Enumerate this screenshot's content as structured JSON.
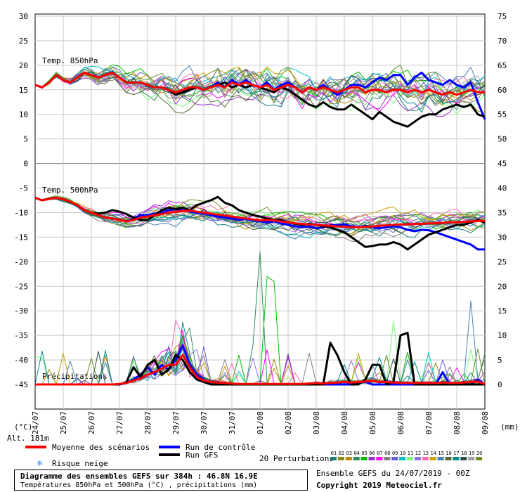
{
  "chart_data": {
    "type": "line",
    "title": "Diagramme des ensembles GEFS sur 384h : 46.8N 16.9E",
    "subtitle": "Températures 850hPa et 500hPa (°C) , précipitations (mm)",
    "run_info": "Ensemble GEFS du 24/07/2019 - 00Z",
    "copyright": "Copyright 2019 Meteociel.fr",
    "altitude": "Alt. 181m",
    "left_unit": "(°C)",
    "right_unit": "(mm)",
    "panel_labels": [
      "Temp. 850hPa",
      "Temp. 500hPa",
      "Précipitations"
    ],
    "left_ticks": [
      "30",
      "25",
      "20",
      "15",
      "10",
      "5",
      "0",
      "-5",
      "-10",
      "-15",
      "-20",
      "-25",
      "-30",
      "-35",
      "-40",
      "-45"
    ],
    "right_ticks": [
      "75",
      "70",
      "65",
      "60",
      "55",
      "50",
      "45",
      "40",
      "35",
      "30",
      "25",
      "20",
      "15",
      "10",
      "5",
      "0"
    ],
    "x_ticks": [
      "24/07",
      "25/07",
      "26/07",
      "27/07",
      "28/07",
      "29/07",
      "30/07",
      "31/07",
      "01/08",
      "02/08",
      "03/08",
      "04/08",
      "05/08",
      "06/08",
      "07/08",
      "08/08",
      "09/08"
    ],
    "legend": {
      "mean": "Moyenne des scénarios",
      "control": "Run de contrôle",
      "gfs": "Run GFS",
      "snow": "Risque neige",
      "perturbations": "20 Perturbations",
      "pert_numbers": [
        "01",
        "02",
        "03",
        "04",
        "05",
        "06",
        "07",
        "08",
        "09",
        "10",
        "11",
        "12",
        "13",
        "14",
        "15",
        "16",
        "17",
        "18",
        "19",
        "20"
      ]
    },
    "colors": {
      "mean": "#ff0000",
      "control": "#0000ff",
      "gfs": "#000000",
      "members": [
        "#1e7a7a",
        "#8b8b00",
        "#b8860b",
        "#2e8b57",
        "#00c000",
        "#9932cc",
        "#ff00ff",
        "#808080",
        "#6a5acd",
        "#00bfbf",
        "#7cfc7c",
        "#9370db",
        "#ff69b4",
        "#c8a000",
        "#4682b4",
        "#556b2f",
        "#008b8b",
        "#2f4f4f",
        "#a0a0a0",
        "#6b8e23"
      ]
    },
    "x": [
      0,
      6,
      12,
      18,
      24,
      30,
      36,
      42,
      48,
      54,
      60,
      66,
      72,
      78,
      84,
      90,
      96,
      102,
      108,
      114,
      120,
      126,
      132,
      138,
      144,
      150,
      156,
      162,
      168,
      174,
      180,
      186,
      192,
      198,
      204,
      210,
      216,
      222,
      228,
      234,
      240,
      246,
      252,
      258,
      264,
      270,
      276,
      282,
      288,
      294,
      300,
      306,
      312,
      318,
      324,
      330,
      336,
      342,
      348,
      354,
      360,
      366,
      372,
      378,
      384
    ],
    "t850": {
      "mean": [
        16,
        15.5,
        16.5,
        18,
        17,
        16.5,
        17.5,
        18.5,
        18,
        17.5,
        18,
        18.5,
        17.5,
        16.5,
        16.5,
        16.5,
        16,
        15.5,
        15.5,
        15,
        14.5,
        15,
        15.5,
        15.5,
        15,
        15.5,
        16,
        15.5,
        16.5,
        16,
        16.5,
        16,
        15.5,
        16,
        15,
        15.5,
        16,
        15.5,
        14.5,
        15.5,
        15,
        15.5,
        15,
        14.5,
        15,
        15.5,
        15.5,
        14.5,
        15,
        15,
        14.5,
        15,
        15,
        14.5,
        15,
        14.5,
        15,
        14.5,
        14,
        14.5,
        14,
        14.5,
        15,
        14.5,
        14.5
      ],
      "control": [
        16,
        15.5,
        16.5,
        18,
        17,
        16.5,
        17.5,
        18.5,
        18,
        17.5,
        18,
        18.5,
        17.5,
        16.5,
        16.5,
        16.5,
        16,
        15.5,
        15.5,
        15,
        14,
        14.5,
        15,
        15.5,
        15,
        15.5,
        16.5,
        15.5,
        17,
        16,
        17,
        16,
        15.5,
        16.5,
        15,
        16,
        16.5,
        15.5,
        14.5,
        15.5,
        15,
        16,
        15,
        14,
        15,
        16,
        16,
        15.5,
        16.5,
        17.5,
        17,
        18,
        18,
        16,
        17.5,
        18.5,
        17,
        16.5,
        16,
        17,
        16,
        15.5,
        16.5,
        12.5,
        9
      ],
      "gfs": [
        16,
        15.5,
        16.5,
        18,
        17,
        16.5,
        17.5,
        18.5,
        18,
        17.5,
        18,
        18.5,
        17.5,
        16.5,
        16.5,
        16.5,
        16,
        15.5,
        15.5,
        15,
        14,
        14.5,
        15,
        15.5,
        15,
        15.5,
        16,
        16.5,
        15.5,
        16,
        15.5,
        16,
        15.5,
        15,
        14.5,
        15.5,
        15,
        14,
        13,
        12,
        11.5,
        12.5,
        11.5,
        11,
        11,
        12,
        11,
        10,
        9,
        10.5,
        9.5,
        8.5,
        8,
        7.5,
        8.5,
        9.5,
        10,
        10,
        11,
        11.5,
        12,
        11.5,
        12,
        10,
        9.5
      ]
    },
    "t500": {
      "mean": [
        -7,
        -7.5,
        -7.2,
        -7,
        -7.3,
        -7.8,
        -8.5,
        -9.5,
        -10,
        -10.5,
        -11,
        -11.2,
        -11.5,
        -11.8,
        -11.5,
        -11,
        -10.8,
        -10.5,
        -10.3,
        -10,
        -9.8,
        -9.7,
        -9.6,
        -9.8,
        -10,
        -10.2,
        -10.4,
        -10.6,
        -10.8,
        -11,
        -11.2,
        -11.4,
        -11.6,
        -11.5,
        -11.6,
        -11.8,
        -12,
        -12.2,
        -12.3,
        -12.4,
        -12.5,
        -12.6,
        -12.7,
        -12.8,
        -12.9,
        -13,
        -13,
        -12.9,
        -12.8,
        -12.7,
        -12.6,
        -12.5,
        -12.4,
        -12.4,
        -12.3,
        -12.3,
        -12.2,
        -12.2,
        -12.1,
        -12,
        -12,
        -11.9,
        -11.8,
        -11.7,
        -11.7
      ],
      "control": [
        -7,
        -7.5,
        -7.2,
        -7,
        -7.3,
        -7.8,
        -8.5,
        -9.5,
        -10,
        -10.5,
        -11,
        -11.2,
        -11.5,
        -11.8,
        -11.3,
        -10.5,
        -10.5,
        -10.2,
        -10,
        -9.5,
        -9.3,
        -9.5,
        -9.8,
        -10,
        -10.2,
        -10.5,
        -10.8,
        -11,
        -11.2,
        -11.5,
        -11.3,
        -11.6,
        -11.8,
        -12,
        -11.8,
        -12.2,
        -12.5,
        -12.8,
        -13,
        -12.8,
        -13.2,
        -13,
        -12.6,
        -12.5,
        -12.4,
        -12.8,
        -13,
        -12.7,
        -13,
        -13.2,
        -13,
        -12.8,
        -13,
        -13.5,
        -13.8,
        -13.5,
        -13.6,
        -14,
        -14.5,
        -15,
        -15.5,
        -16,
        -16.5,
        -17.5,
        -17.5
      ],
      "gfs": [
        -7,
        -7.5,
        -7.2,
        -7,
        -7.3,
        -7.8,
        -8.5,
        -9.5,
        -10,
        -10.2,
        -10,
        -9.5,
        -9.8,
        -10.3,
        -11,
        -11.5,
        -11.5,
        -10.5,
        -9.5,
        -9,
        -9.3,
        -9,
        -9.5,
        -8.5,
        -8,
        -7.5,
        -6.8,
        -8,
        -8.5,
        -9.5,
        -10,
        -10.5,
        -10.8,
        -11.2,
        -11.5,
        -11.5,
        -12,
        -12.3,
        -12.5,
        -12.3,
        -12.5,
        -12.8,
        -13,
        -13.5,
        -14,
        -15,
        -16,
        -17,
        -16.8,
        -16.5,
        -16.5,
        -16,
        -16.5,
        -17.5,
        -16.5,
        -15.5,
        -14.5,
        -14,
        -13.5,
        -13,
        -12.5,
        -12.5,
        -12,
        -11.5,
        -12
      ]
    },
    "precip": {
      "mean": [
        0,
        0,
        0,
        0,
        0,
        0,
        0,
        0,
        0,
        0,
        0,
        0,
        0.1,
        0.3,
        0.8,
        1.2,
        2,
        2.5,
        3.2,
        4,
        4,
        6,
        3.5,
        1.5,
        0.8,
        0.5,
        0.4,
        0.3,
        0.2,
        0.1,
        0.1,
        0.1,
        0.1,
        0.1,
        0.1,
        0.1,
        0.1,
        0.1,
        0.1,
        0.2,
        0.3,
        0.2,
        0.3,
        0.4,
        0.5,
        0.4,
        0.5,
        0.6,
        0.7,
        0.5,
        0.5,
        0.4,
        0.3,
        0.3,
        0.3,
        0.3,
        0.3,
        0.3,
        0.4,
        0.3,
        0.3,
        0.4,
        0.5,
        0.6,
        0.1
      ],
      "control": [
        0,
        0,
        0,
        0,
        0,
        0,
        0,
        0,
        0,
        0,
        0,
        0,
        0,
        0.3,
        1,
        2,
        3.5,
        2,
        4,
        3,
        5,
        8,
        4,
        2,
        1,
        0,
        0,
        0,
        0,
        0,
        0,
        0,
        0,
        0,
        0,
        0,
        0,
        0,
        0,
        0,
        0,
        0,
        0,
        0,
        0,
        0,
        0.5,
        0.5,
        0,
        0,
        0,
        0,
        0,
        0,
        0,
        0,
        0,
        0,
        2.5,
        0,
        0,
        0,
        0,
        1,
        0
      ],
      "gfs": [
        0,
        0,
        0,
        0,
        0,
        0,
        0,
        0,
        0,
        0,
        0,
        0,
        0,
        0.5,
        3.5,
        1.5,
        4,
        5,
        2,
        3,
        6,
        5,
        2.5,
        1,
        0.5,
        0,
        0,
        0,
        0,
        0,
        0,
        0,
        0,
        0,
        0,
        0,
        0,
        0,
        0,
        0,
        0,
        0,
        8.5,
        6,
        2.5,
        0,
        0,
        1,
        4,
        4,
        0,
        0.5,
        10,
        10.5,
        0,
        0,
        0,
        0,
        0,
        0,
        0,
        0,
        0,
        0,
        0
      ]
    },
    "left_range": [
      -45,
      30
    ],
    "right_range": [
      0,
      75
    ]
  }
}
